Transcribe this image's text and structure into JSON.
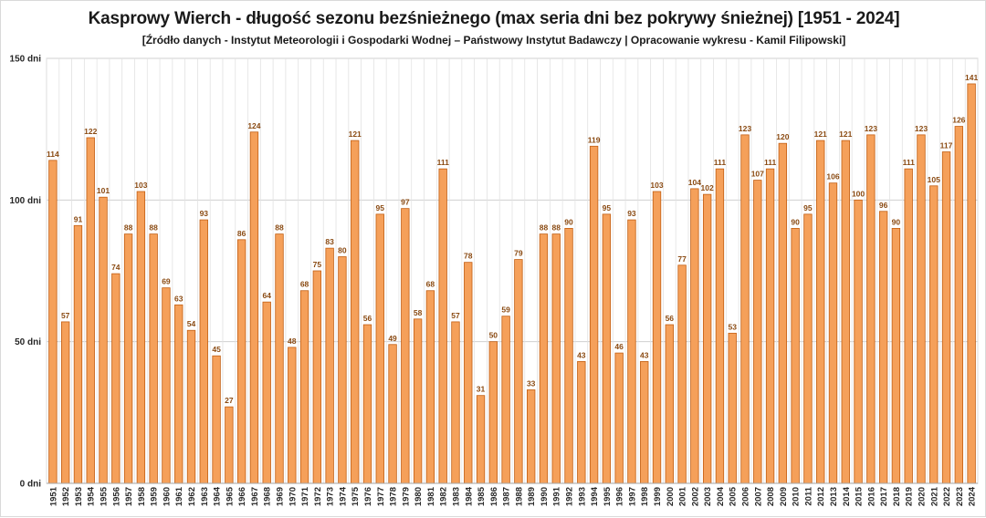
{
  "title": "Kasprowy Wierch - długość sezonu bezśnieżnego (max seria dni bez pokrywy śnieżnej) [1951 - 2024]",
  "subtitle": "[Źródło danych - Instytut Meteorologii i Gospodarki Wodnej – Państwowy Instytut Badawczy | Opracowanie wykresu - Kamil Filipowski]",
  "colors": {
    "bar_fill": "#f5a05a",
    "bar_stroke": "#c25e12",
    "grid": "#d0d0d0",
    "axis": "#a6a6a6",
    "value_label": "#8a4a12"
  },
  "chart_data": {
    "type": "bar",
    "title": "Kasprowy Wierch - długość sezonu bezśnieżnego (max seria dni bez pokrywy śnieżnej) [1951 - 2024]",
    "xlabel": "",
    "ylabel": "",
    "ylim": [
      0,
      150
    ],
    "yticks": [
      0,
      50,
      100,
      150
    ],
    "ytick_labels": [
      "0 dni",
      "50 dni",
      "100 dni",
      "150 dni"
    ],
    "grid": true,
    "data_labels": true,
    "categories": [
      "1951",
      "1952",
      "1953",
      "1954",
      "1955",
      "1956",
      "1957",
      "1958",
      "1959",
      "1960",
      "1961",
      "1962",
      "1963",
      "1964",
      "1965",
      "1966",
      "1967",
      "1968",
      "1969",
      "1970",
      "1971",
      "1972",
      "1973",
      "1974",
      "1975",
      "1976",
      "1977",
      "1978",
      "1979",
      "1980",
      "1981",
      "1982",
      "1983",
      "1984",
      "1985",
      "1986",
      "1987",
      "1988",
      "1989",
      "1990",
      "1991",
      "1992",
      "1993",
      "1994",
      "1995",
      "1996",
      "1997",
      "1998",
      "1999",
      "2000",
      "2001",
      "2002",
      "2003",
      "2004",
      "2005",
      "2006",
      "2007",
      "2008",
      "2009",
      "2010",
      "2011",
      "2012",
      "2013",
      "2014",
      "2015",
      "2016",
      "2017",
      "2018",
      "2019",
      "2020",
      "2021",
      "2022",
      "2023",
      "2024"
    ],
    "values": [
      114,
      57,
      91,
      122,
      101,
      74,
      88,
      103,
      88,
      69,
      63,
      54,
      93,
      45,
      27,
      86,
      124,
      64,
      88,
      48,
      68,
      75,
      83,
      80,
      121,
      56,
      95,
      49,
      97,
      58,
      68,
      111,
      57,
      78,
      31,
      50,
      59,
      79,
      33,
      88,
      88,
      90,
      43,
      119,
      95,
      46,
      93,
      43,
      103,
      56,
      77,
      104,
      102,
      111,
      53,
      123,
      107,
      111,
      120,
      90,
      95,
      121,
      106,
      121,
      100,
      123,
      96,
      90,
      111,
      123,
      105,
      117,
      126,
      141
    ]
  }
}
